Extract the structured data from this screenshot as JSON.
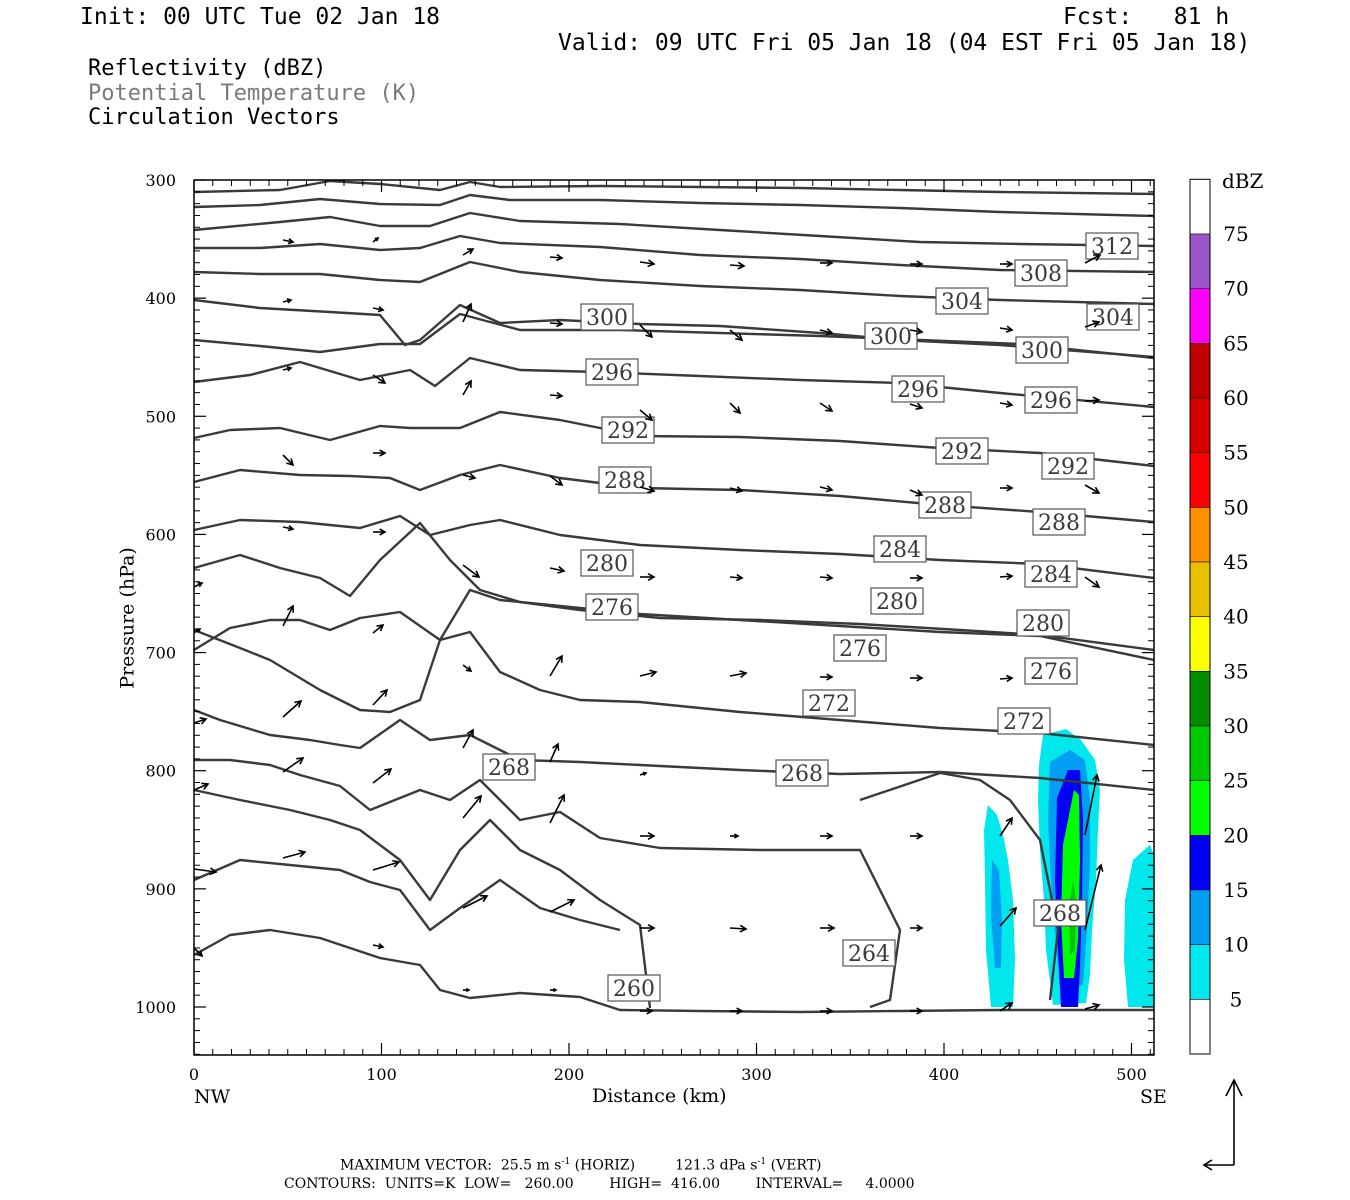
{
  "header": {
    "init": "Init: 00 UTC Tue 02 Jan 18",
    "fcst": "Fcst:   81 h",
    "valid": "Valid: 09 UTC Fri 05 Jan 18 (04 EST Fri 05 Jan 18)"
  },
  "legend_items": {
    "reflectivity": "Reflectivity (dBZ)",
    "potential_temperature": "Potential Temperature (K)",
    "circulation": "Circulation Vectors"
  },
  "footer": {
    "max_vector_prefix": "MAXIMUM VECTOR:  25.5 m s",
    "max_vector_mid": " (HORIZ)         121.3 dPa s",
    "max_vector_suffix": " (VERT)",
    "superscript": "-1",
    "contours": "CONTOURS:  UNITS=K  LOW=   260.00        HIGH=  416.00        INTERVAL=     4.0000"
  },
  "colors": {
    "contour": "#3a3a3a",
    "vector": "#000000"
  },
  "chart_data": {
    "type": "contour",
    "xlabel": "Distance (km)",
    "ylabel": "Pressure (hPa)",
    "xlim": [
      0,
      512
    ],
    "ylim_pressure": [
      300,
      1040
    ],
    "y_axis_reversed": true,
    "x_ticks": [
      "0",
      "100",
      "200",
      "300",
      "400",
      "500"
    ],
    "y_ticks": [
      "300",
      "400",
      "500",
      "600",
      "700",
      "800",
      "900",
      "1000"
    ],
    "x_end_labels": {
      "left": "NW",
      "right": "SE"
    },
    "colorbar": {
      "title": "dBZ",
      "labels": [
        "5",
        "10",
        "15",
        "20",
        "25",
        "30",
        "35",
        "40",
        "45",
        "50",
        "55",
        "60",
        "65",
        "70",
        "75"
      ],
      "colors": [
        "#ffffff",
        "#00e8ec",
        "#009ff4",
        "#0000f6",
        "#00ff00",
        "#00c800",
        "#008e00",
        "#ffff00",
        "#e7c000",
        "#ff9000",
        "#ff0000",
        "#d60000",
        "#c00000",
        "#ff00ff",
        "#9955c9",
        "#ffffff"
      ]
    },
    "contour_interval_K": 4,
    "contour_label_values": [
      "312",
      "308",
      "304",
      "304",
      "300",
      "300",
      "300",
      "296",
      "296",
      "296",
      "292",
      "292",
      "292",
      "288",
      "288",
      "288",
      "284",
      "284",
      "280",
      "280",
      "280",
      "276",
      "276",
      "276",
      "272",
      "272",
      "268",
      "268",
      "268",
      "264",
      "260"
    ],
    "reflectivity_cells_dbz": [
      {
        "x_km": 427,
        "p_top": 830,
        "p_bot": 1000,
        "max_dbz": 10
      },
      {
        "x_km": 468,
        "p_top": 745,
        "p_bot": 1002,
        "max_dbz": 20
      },
      {
        "x_km": 508,
        "p_top": 860,
        "p_bot": 1000,
        "max_dbz": 5
      }
    ]
  }
}
